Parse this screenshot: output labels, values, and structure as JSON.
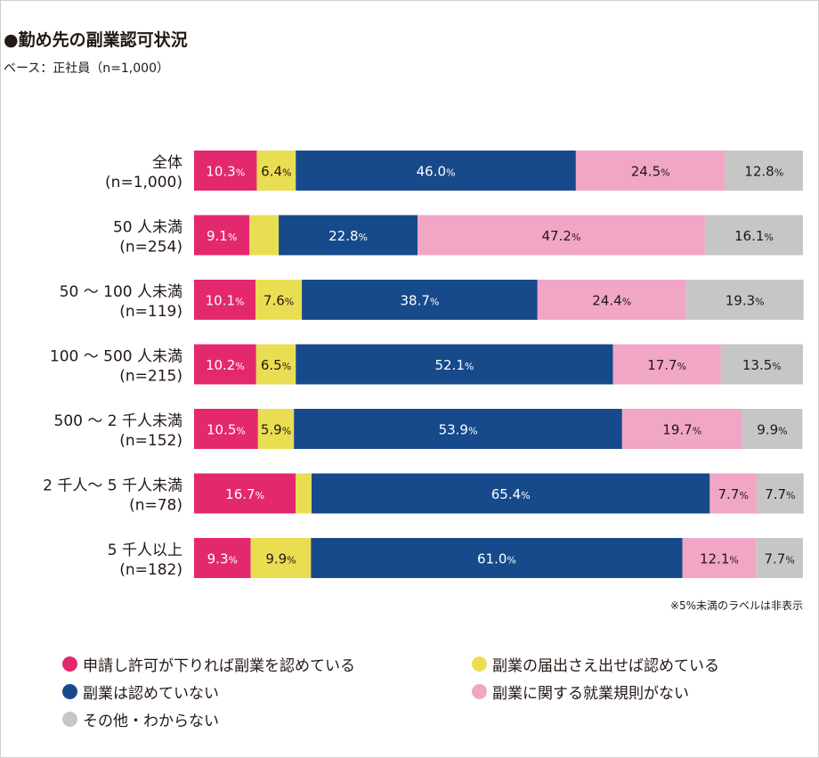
{
  "title": "●勤め先の副業認可状況",
  "subtitle": "ベース：正社員（n=1,000）",
  "note": "※5%未満のラベルは非表示",
  "colors": {
    "apply_permit": "#e4286d",
    "notify": "#e9de52",
    "not_allowed": "#174a8b",
    "no_rule": "#f1a6c6",
    "other": "#c6c6c6"
  },
  "legend": [
    {
      "key": "apply_permit",
      "label": "申請し許可が下りれば副業を認めている"
    },
    {
      "key": "notify",
      "label": "副業の届出さえ出せば認めている"
    },
    {
      "key": "not_allowed",
      "label": "副業は認めていない"
    },
    {
      "key": "no_rule",
      "label": "副業に関する就業規則がない"
    },
    {
      "key": "other",
      "label": "その他・わからない"
    }
  ],
  "chart_data": {
    "type": "bar",
    "orientation": "horizontal",
    "stacked": true,
    "unit": "%",
    "categories": [
      {
        "label": "全体",
        "n": "(n=1,000)"
      },
      {
        "label": "50 人未満",
        "n": "(n=254)"
      },
      {
        "label": "50 ～ 100 人未満",
        "n": "(n=119)"
      },
      {
        "label": "100 ～ 500 人未満",
        "n": "(n=215)"
      },
      {
        "label": "500 ～ 2 千人未満",
        "n": "(n=152)"
      },
      {
        "label": "2 千人～ 5 千人未満",
        "n": "(n=78)"
      },
      {
        "label": "5 千人以上",
        "n": "(n=182)"
      }
    ],
    "series": [
      {
        "key": "apply_permit",
        "name": "申請し許可が下りれば副業を認めている",
        "values": [
          10.3,
          9.1,
          10.1,
          10.2,
          10.5,
          16.7,
          9.3
        ]
      },
      {
        "key": "notify",
        "name": "副業の届出さえ出せば認めている",
        "values": [
          6.4,
          4.8,
          7.6,
          6.5,
          5.9,
          2.6,
          9.9
        ]
      },
      {
        "key": "not_allowed",
        "name": "副業は認めていない",
        "values": [
          46.0,
          22.8,
          38.7,
          52.1,
          53.9,
          65.4,
          61.0
        ]
      },
      {
        "key": "no_rule",
        "name": "副業に関する就業規則がない",
        "values": [
          24.5,
          47.2,
          24.4,
          17.7,
          19.7,
          7.7,
          12.1
        ]
      },
      {
        "key": "other",
        "name": "その他・わからない",
        "values": [
          12.8,
          16.1,
          19.3,
          13.5,
          9.9,
          7.7,
          7.7
        ]
      }
    ],
    "label_threshold": 5,
    "xlim": [
      0,
      100
    ]
  }
}
